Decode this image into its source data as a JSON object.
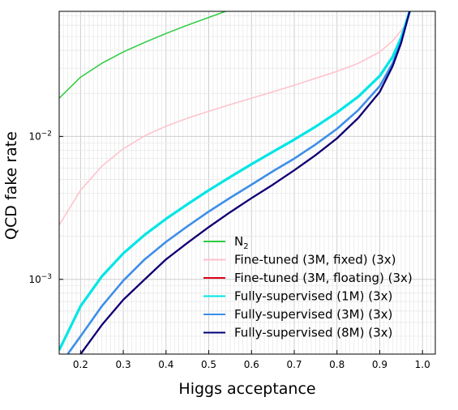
{
  "chart_data": {
    "type": "line",
    "title": "",
    "xlabel": "Higgs acceptance",
    "ylabel": "QCD fake rate",
    "xscale": "linear",
    "yscale": "log",
    "xlim": [
      0.15,
      1.03
    ],
    "ylim": [
      0.0003,
      0.075
    ],
    "grid": "major and minor",
    "legend_position": "lower-right",
    "x_ticks": [
      {
        "value": 0.2,
        "label": "0.2"
      },
      {
        "value": 0.3,
        "label": "0.3"
      },
      {
        "value": 0.4,
        "label": "0.4"
      },
      {
        "value": 0.5,
        "label": "0.5"
      },
      {
        "value": 0.6,
        "label": "0.6"
      },
      {
        "value": 0.7,
        "label": "0.7"
      },
      {
        "value": 0.8,
        "label": "0.8"
      },
      {
        "value": 0.9,
        "label": "0.9"
      },
      {
        "value": 1.0,
        "label": "1.0"
      }
    ],
    "y_ticks": [
      {
        "value": 0.001,
        "base": "10",
        "exp": "−3"
      },
      {
        "value": 0.01,
        "base": "10",
        "exp": "−2"
      }
    ],
    "series": [
      {
        "name": "N",
        "name_sub": "2",
        "color": "#2ecc40",
        "x": [
          0.15,
          0.2,
          0.25,
          0.3,
          0.35,
          0.4,
          0.45,
          0.5,
          0.55
        ],
        "y": [
          0.0185,
          0.026,
          0.0325,
          0.039,
          0.0455,
          0.0525,
          0.06,
          0.068,
          0.077
        ]
      },
      {
        "name": "Fine-tuned (3M, fixed) (3x)",
        "color": "#ffc0cb",
        "x": [
          0.15,
          0.2,
          0.25,
          0.3,
          0.35,
          0.4,
          0.45,
          0.5,
          0.55,
          0.6,
          0.65,
          0.7,
          0.75,
          0.8,
          0.85,
          0.9,
          0.93,
          0.96,
          0.97
        ],
        "y": [
          0.0024,
          0.0042,
          0.0062,
          0.0082,
          0.0101,
          0.0118,
          0.0134,
          0.015,
          0.0167,
          0.0185,
          0.0205,
          0.0228,
          0.0255,
          0.0285,
          0.0325,
          0.039,
          0.0465,
          0.06,
          0.075
        ]
      },
      {
        "name": "Fine-tuned (3M, floating) (3x)",
        "color": "#e0001b",
        "x": [
          0.2,
          0.25,
          0.3,
          0.35,
          0.4,
          0.45,
          0.5,
          0.55,
          0.6,
          0.65,
          0.7,
          0.75,
          0.8,
          0.85,
          0.9,
          0.93,
          0.95,
          0.97
        ],
        "y": [
          0.0003,
          0.00048,
          0.00072,
          0.001,
          0.00138,
          0.0018,
          0.00232,
          0.00295,
          0.0037,
          0.0046,
          0.0058,
          0.0074,
          0.0097,
          0.0135,
          0.0205,
          0.031,
          0.045,
          0.075
        ]
      },
      {
        "name": "Fully-supervised (1M) (3x)",
        "color": "#00e5e5",
        "x": [
          0.15,
          0.2,
          0.25,
          0.3,
          0.35,
          0.4,
          0.45,
          0.5,
          0.55,
          0.6,
          0.65,
          0.7,
          0.75,
          0.8,
          0.85,
          0.9,
          0.93,
          0.95,
          0.97
        ],
        "y": [
          0.00032,
          0.00065,
          0.00105,
          0.00152,
          0.00205,
          0.00265,
          0.00335,
          0.0042,
          0.0052,
          0.0064,
          0.0078,
          0.0095,
          0.0117,
          0.0147,
          0.019,
          0.0265,
          0.036,
          0.049,
          0.075
        ]
      },
      {
        "name": "Fully-supervised (3M) (3x)",
        "color": "#3d8ee8",
        "x": [
          0.17,
          0.2,
          0.25,
          0.3,
          0.35,
          0.4,
          0.45,
          0.5,
          0.55,
          0.6,
          0.65,
          0.7,
          0.75,
          0.8,
          0.85,
          0.9,
          0.93,
          0.95,
          0.97
        ],
        "y": [
          0.0003,
          0.0004,
          0.00065,
          0.00098,
          0.00138,
          0.00183,
          0.00235,
          0.00298,
          0.00372,
          0.0046,
          0.0057,
          0.007,
          0.0088,
          0.0113,
          0.0153,
          0.0225,
          0.0325,
          0.046,
          0.075
        ]
      },
      {
        "name": "Fully-supervised (8M) (3x)",
        "color": "#00007a",
        "x": [
          0.2,
          0.25,
          0.3,
          0.35,
          0.4,
          0.45,
          0.5,
          0.55,
          0.6,
          0.65,
          0.7,
          0.75,
          0.8,
          0.85,
          0.9,
          0.93,
          0.95,
          0.97
        ],
        "y": [
          0.0003,
          0.00048,
          0.00072,
          0.001,
          0.00138,
          0.0018,
          0.00232,
          0.00295,
          0.0037,
          0.0046,
          0.0058,
          0.0074,
          0.0097,
          0.0135,
          0.0205,
          0.031,
          0.045,
          0.075
        ]
      }
    ]
  }
}
